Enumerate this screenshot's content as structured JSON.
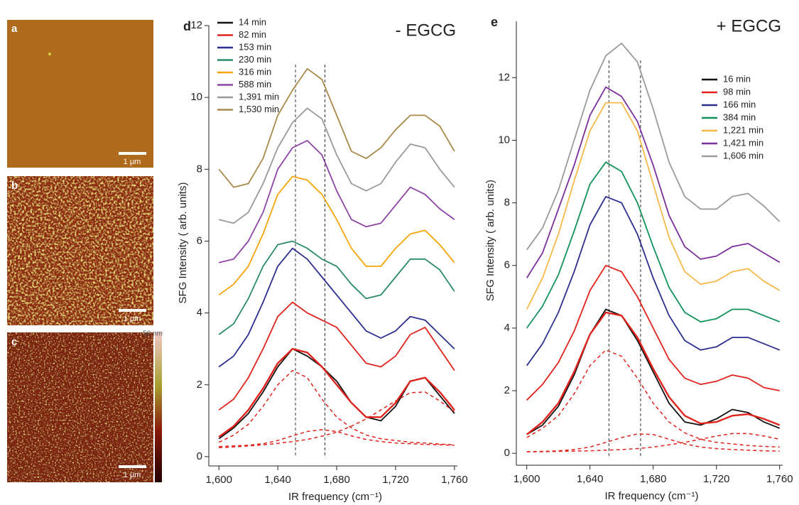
{
  "images": [
    {
      "label": "a",
      "scale_bar": "1 μm"
    },
    {
      "label": "b",
      "scale_bar": "1 μm"
    },
    {
      "label": "c",
      "scale_bar": "1 μm",
      "colorbar_label": "50 nm"
    }
  ],
  "chart_data": [
    {
      "type": "line",
      "panel": "d",
      "title": "- EGCG",
      "x_label": "IR frequency (cm⁻¹)",
      "y_label": "SFG Intensity ( arb. units)",
      "x": [
        1600,
        1610,
        1620,
        1630,
        1640,
        1650,
        1660,
        1670,
        1680,
        1690,
        1700,
        1710,
        1720,
        1730,
        1740,
        1750,
        1760
      ],
      "xlim": [
        1597,
        1761
      ],
      "ylim": [
        -0.1,
        12
      ],
      "xticks": [
        {
          "value": 1600,
          "label": "1,600"
        },
        {
          "value": 1640,
          "label": "1,640"
        },
        {
          "value": 1680,
          "label": "1,680"
        },
        {
          "value": 1720,
          "label": "1,720"
        },
        {
          "value": 1760,
          "label": "1,760"
        }
      ],
      "yticks": [
        0,
        2,
        4,
        6,
        8,
        10,
        12
      ],
      "legend": "upper left",
      "vlines": [
        1652,
        1672
      ],
      "series": [
        {
          "name": "14 min",
          "color": "#111111",
          "values": [
            0.5,
            0.8,
            1.2,
            1.8,
            2.5,
            3.0,
            2.8,
            2.5,
            2.1,
            1.5,
            1.1,
            1.0,
            1.4,
            2.1,
            2.2,
            1.7,
            1.2
          ]
        },
        {
          "name": "82 min",
          "color": "#e0231c",
          "values": [
            1.3,
            1.6,
            2.2,
            3.0,
            3.9,
            4.3,
            4.0,
            3.8,
            3.6,
            3.1,
            2.6,
            2.5,
            2.8,
            3.4,
            3.6,
            3.0,
            2.4
          ]
        },
        {
          "name": "153 min",
          "color": "#2b2f8f",
          "values": [
            2.5,
            2.8,
            3.4,
            4.3,
            5.3,
            5.8,
            5.5,
            5.0,
            4.5,
            4.0,
            3.5,
            3.3,
            3.5,
            3.9,
            3.8,
            3.4,
            3.0
          ]
        },
        {
          "name": "230 min",
          "color": "#2a8a6a",
          "values": [
            3.4,
            3.7,
            4.4,
            5.3,
            5.9,
            6.0,
            5.8,
            5.5,
            5.3,
            4.8,
            4.4,
            4.5,
            5.0,
            5.5,
            5.5,
            5.2,
            4.6
          ]
        },
        {
          "name": "316 min",
          "color": "#f5a50a",
          "values": [
            4.5,
            4.8,
            5.3,
            6.2,
            7.3,
            7.8,
            7.7,
            7.3,
            6.6,
            5.8,
            5.3,
            5.3,
            5.8,
            6.2,
            6.3,
            5.9,
            5.4
          ]
        },
        {
          "name": "588 min",
          "color": "#8e44a5",
          "values": [
            5.4,
            5.5,
            6.0,
            6.8,
            8.0,
            8.6,
            8.8,
            8.4,
            7.4,
            6.6,
            6.4,
            6.5,
            7.0,
            7.5,
            7.3,
            6.9,
            6.6
          ]
        },
        {
          "name": "1,391 min",
          "color": "#999999",
          "values": [
            6.6,
            6.5,
            6.8,
            7.6,
            8.6,
            9.3,
            9.7,
            9.4,
            8.4,
            7.6,
            7.4,
            7.6,
            8.2,
            8.7,
            8.6,
            8.0,
            7.5
          ]
        },
        {
          "name": "1,530 min",
          "color": "#a88a4a",
          "values": [
            8.0,
            7.5,
            7.6,
            8.3,
            9.5,
            10.2,
            10.8,
            10.5,
            9.5,
            8.5,
            8.3,
            8.6,
            9.1,
            9.5,
            9.5,
            9.2,
            8.5
          ]
        }
      ],
      "fits": [
        {
          "color": "#e0231c",
          "style": "solid",
          "values": [
            0.55,
            0.85,
            1.3,
            1.9,
            2.6,
            3.0,
            2.9,
            2.5,
            2.0,
            1.5,
            1.1,
            1.1,
            1.5,
            2.1,
            2.2,
            1.8,
            1.3
          ]
        },
        {
          "color": "#e0231c",
          "style": "dashed",
          "values": [
            0.4,
            0.6,
            0.9,
            1.4,
            2.0,
            2.4,
            2.2,
            1.6,
            1.1,
            0.8,
            0.6,
            0.5,
            0.45,
            0.4,
            0.38,
            0.35,
            0.33
          ]
        },
        {
          "color": "#e0231c",
          "style": "dashed",
          "values": [
            0.28,
            0.3,
            0.32,
            0.36,
            0.45,
            0.58,
            0.7,
            0.75,
            0.7,
            0.58,
            0.48,
            0.42,
            0.38,
            0.36,
            0.34,
            0.33,
            0.32
          ]
        },
        {
          "color": "#e0231c",
          "style": "dashed",
          "values": [
            0.25,
            0.27,
            0.3,
            0.33,
            0.37,
            0.42,
            0.48,
            0.57,
            0.68,
            0.85,
            1.05,
            1.3,
            1.55,
            1.78,
            1.8,
            1.55,
            1.25
          ]
        }
      ]
    },
    {
      "type": "line",
      "panel": "e",
      "title": "+ EGCG",
      "x_label": "IR frequency (cm⁻¹)",
      "y_label": "SFG Intensity ( arb. units)",
      "x": [
        1600,
        1610,
        1620,
        1630,
        1640,
        1650,
        1660,
        1670,
        1680,
        1690,
        1700,
        1710,
        1720,
        1730,
        1740,
        1750,
        1760
      ],
      "xlim": [
        1597,
        1761
      ],
      "ylim": [
        -0.2,
        13.8
      ],
      "xticks": [
        {
          "value": 1600,
          "label": "1,600"
        },
        {
          "value": 1640,
          "label": "1,640"
        },
        {
          "value": 1680,
          "label": "1,680"
        },
        {
          "value": 1720,
          "label": "1,720"
        },
        {
          "value": 1760,
          "label": "1,760"
        }
      ],
      "yticks": [
        0,
        2,
        4,
        6,
        8,
        10,
        12
      ],
      "legend": "upper right",
      "vlines": [
        1652,
        1672
      ],
      "series": [
        {
          "name": "16 min",
          "color": "#111111",
          "values": [
            0.6,
            0.9,
            1.5,
            2.5,
            3.8,
            4.6,
            4.4,
            3.6,
            2.6,
            1.6,
            1.0,
            0.9,
            1.1,
            1.4,
            1.3,
            1.0,
            0.8
          ]
        },
        {
          "name": "98 min",
          "color": "#e0231c",
          "values": [
            1.7,
            2.2,
            2.9,
            3.9,
            5.2,
            6.0,
            5.8,
            5.0,
            4.0,
            3.0,
            2.4,
            2.2,
            2.3,
            2.5,
            2.4,
            2.1,
            2.0
          ]
        },
        {
          "name": "166 min",
          "color": "#2b2f8f",
          "values": [
            2.8,
            3.5,
            4.5,
            5.8,
            7.3,
            8.2,
            8.0,
            7.0,
            5.6,
            4.4,
            3.6,
            3.3,
            3.4,
            3.7,
            3.7,
            3.5,
            3.3
          ]
        },
        {
          "name": "384 min",
          "color": "#12925a",
          "values": [
            4.0,
            4.7,
            5.7,
            7.1,
            8.6,
            9.3,
            9.0,
            8.0,
            6.6,
            5.3,
            4.5,
            4.2,
            4.3,
            4.6,
            4.6,
            4.4,
            4.2
          ]
        },
        {
          "name": "1,221 min",
          "color": "#f7b84a",
          "values": [
            4.6,
            5.6,
            7.0,
            8.7,
            10.3,
            11.2,
            11.2,
            10.3,
            8.6,
            6.9,
            5.8,
            5.4,
            5.5,
            5.8,
            5.9,
            5.5,
            5.2
          ]
        },
        {
          "name": "1,421 min",
          "color": "#7b2f9c",
          "values": [
            5.6,
            6.4,
            7.8,
            9.2,
            10.8,
            11.7,
            11.4,
            10.6,
            9.2,
            7.6,
            6.6,
            6.2,
            6.3,
            6.6,
            6.7,
            6.4,
            6.1
          ]
        },
        {
          "name": "1,606 min",
          "color": "#9a9a9a",
          "values": [
            6.5,
            7.2,
            8.4,
            10.0,
            11.6,
            12.7,
            13.1,
            12.5,
            11.0,
            9.3,
            8.2,
            7.8,
            7.8,
            8.2,
            8.3,
            7.9,
            7.4
          ]
        }
      ],
      "fits": [
        {
          "color": "#e0231c",
          "style": "solid",
          "values": [
            0.6,
            1.0,
            1.6,
            2.6,
            3.8,
            4.5,
            4.4,
            3.7,
            2.7,
            1.8,
            1.2,
            0.95,
            1.0,
            1.2,
            1.25,
            1.1,
            0.9
          ]
        },
        {
          "color": "#e0231c",
          "style": "dashed",
          "values": [
            0.5,
            0.8,
            1.2,
            1.9,
            2.8,
            3.3,
            3.1,
            2.4,
            1.6,
            1.0,
            0.65,
            0.45,
            0.35,
            0.3,
            0.25,
            0.22,
            0.2
          ]
        },
        {
          "color": "#e0231c",
          "style": "dashed",
          "values": [
            0.05,
            0.06,
            0.08,
            0.12,
            0.2,
            0.35,
            0.5,
            0.62,
            0.6,
            0.45,
            0.3,
            0.2,
            0.15,
            0.12,
            0.1,
            0.08,
            0.07
          ]
        },
        {
          "color": "#e0231c",
          "style": "dashed",
          "values": [
            0.05,
            0.05,
            0.06,
            0.07,
            0.08,
            0.1,
            0.12,
            0.15,
            0.2,
            0.27,
            0.35,
            0.45,
            0.55,
            0.63,
            0.63,
            0.55,
            0.45
          ]
        }
      ]
    }
  ]
}
